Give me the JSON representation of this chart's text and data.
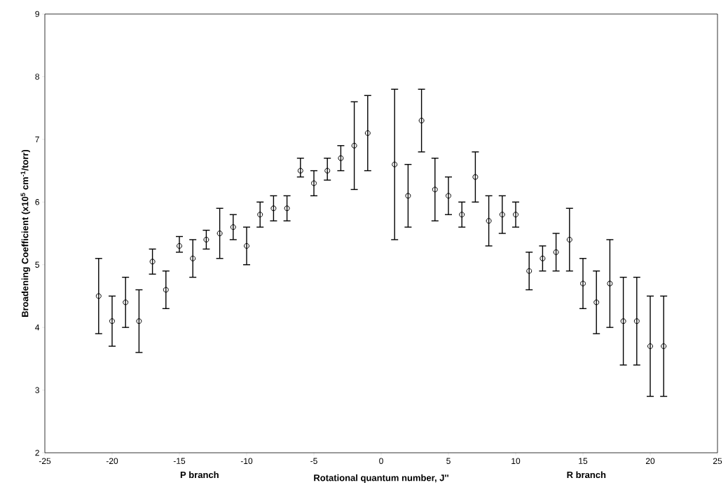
{
  "chart_data": {
    "type": "scatter",
    "xlabel": "Rotational quantum number, J''",
    "ylabel": "Broadening Coefficient (x10$^{5}$ cm$^{-1}$/torr)",
    "annotations": [
      "P branch",
      "R branch"
    ],
    "x": [
      -21,
      -20,
      -19,
      -18,
      -17,
      -16,
      -15,
      -14,
      -13,
      -12,
      -11,
      -10,
      -9,
      -8,
      -7,
      -6,
      -5,
      -4,
      -3,
      -2,
      -1,
      1,
      2,
      3,
      4,
      5,
      6,
      7,
      8,
      9,
      10,
      11,
      12,
      13,
      14,
      15,
      16,
      17,
      18,
      19,
      20,
      21
    ],
    "series": [
      {
        "color": "#000000",
        "values": [
          4.5,
          4.1,
          4.4,
          4.1,
          5.05,
          4.6,
          5.3,
          5.1,
          5.4,
          5.5,
          5.6,
          5.3,
          5.8,
          5.9,
          5.9,
          6.5,
          6.3,
          6.5,
          6.7,
          6.9,
          7.1,
          6.6,
          6.1,
          7.3,
          6.2,
          6.1,
          5.8,
          6.4,
          5.7,
          5.8,
          5.8,
          4.9,
          5.1,
          5.2,
          5.4,
          4.7,
          4.4,
          4.7,
          4.1,
          4.1,
          3.7,
          3.7
        ],
        "errors": [
          [
            3.9,
            5.1
          ],
          [
            3.7,
            4.5
          ],
          [
            4.0,
            4.8
          ],
          [
            3.6,
            4.6
          ],
          [
            4.85,
            5.25
          ],
          [
            4.3,
            4.9
          ],
          [
            5.2,
            5.45
          ],
          [
            4.8,
            5.4
          ],
          [
            5.25,
            5.55
          ],
          [
            5.1,
            5.9
          ],
          [
            5.4,
            5.8
          ],
          [
            5.0,
            5.6
          ],
          [
            5.6,
            6.0
          ],
          [
            5.7,
            6.1
          ],
          [
            5.7,
            6.1
          ],
          [
            6.4,
            6.7
          ],
          [
            6.1,
            6.5
          ],
          [
            6.35,
            6.7
          ],
          [
            6.5,
            6.9
          ],
          [
            6.2,
            7.6
          ],
          [
            6.5,
            7.7
          ],
          [
            5.4,
            7.8
          ],
          [
            5.6,
            6.6
          ],
          [
            6.8,
            7.8
          ],
          [
            5.7,
            6.7
          ],
          [
            5.8,
            6.4
          ],
          [
            5.6,
            6.0
          ],
          [
            6.0,
            6.8
          ],
          [
            5.3,
            6.1
          ],
          [
            5.5,
            6.1
          ],
          [
            5.6,
            6.0
          ],
          [
            4.6,
            5.2
          ],
          [
            4.9,
            5.3
          ],
          [
            4.9,
            5.5
          ],
          [
            4.9,
            5.9
          ],
          [
            4.3,
            5.1
          ],
          [
            3.9,
            4.9
          ],
          [
            4.0,
            5.4
          ],
          [
            3.4,
            4.8
          ],
          [
            3.4,
            4.8
          ],
          [
            2.9,
            4.5
          ],
          [
            2.9,
            4.5
          ]
        ]
      }
    ],
    "xlim": [
      -25,
      25
    ],
    "xticks": [
      -25,
      -20,
      -15,
      -10,
      -5,
      0,
      5,
      10,
      15,
      20,
      25
    ],
    "ylim": [
      2,
      9
    ],
    "yticks": [
      2,
      3,
      4,
      5,
      6,
      7,
      8,
      9
    ],
    "marker": "circle"
  }
}
